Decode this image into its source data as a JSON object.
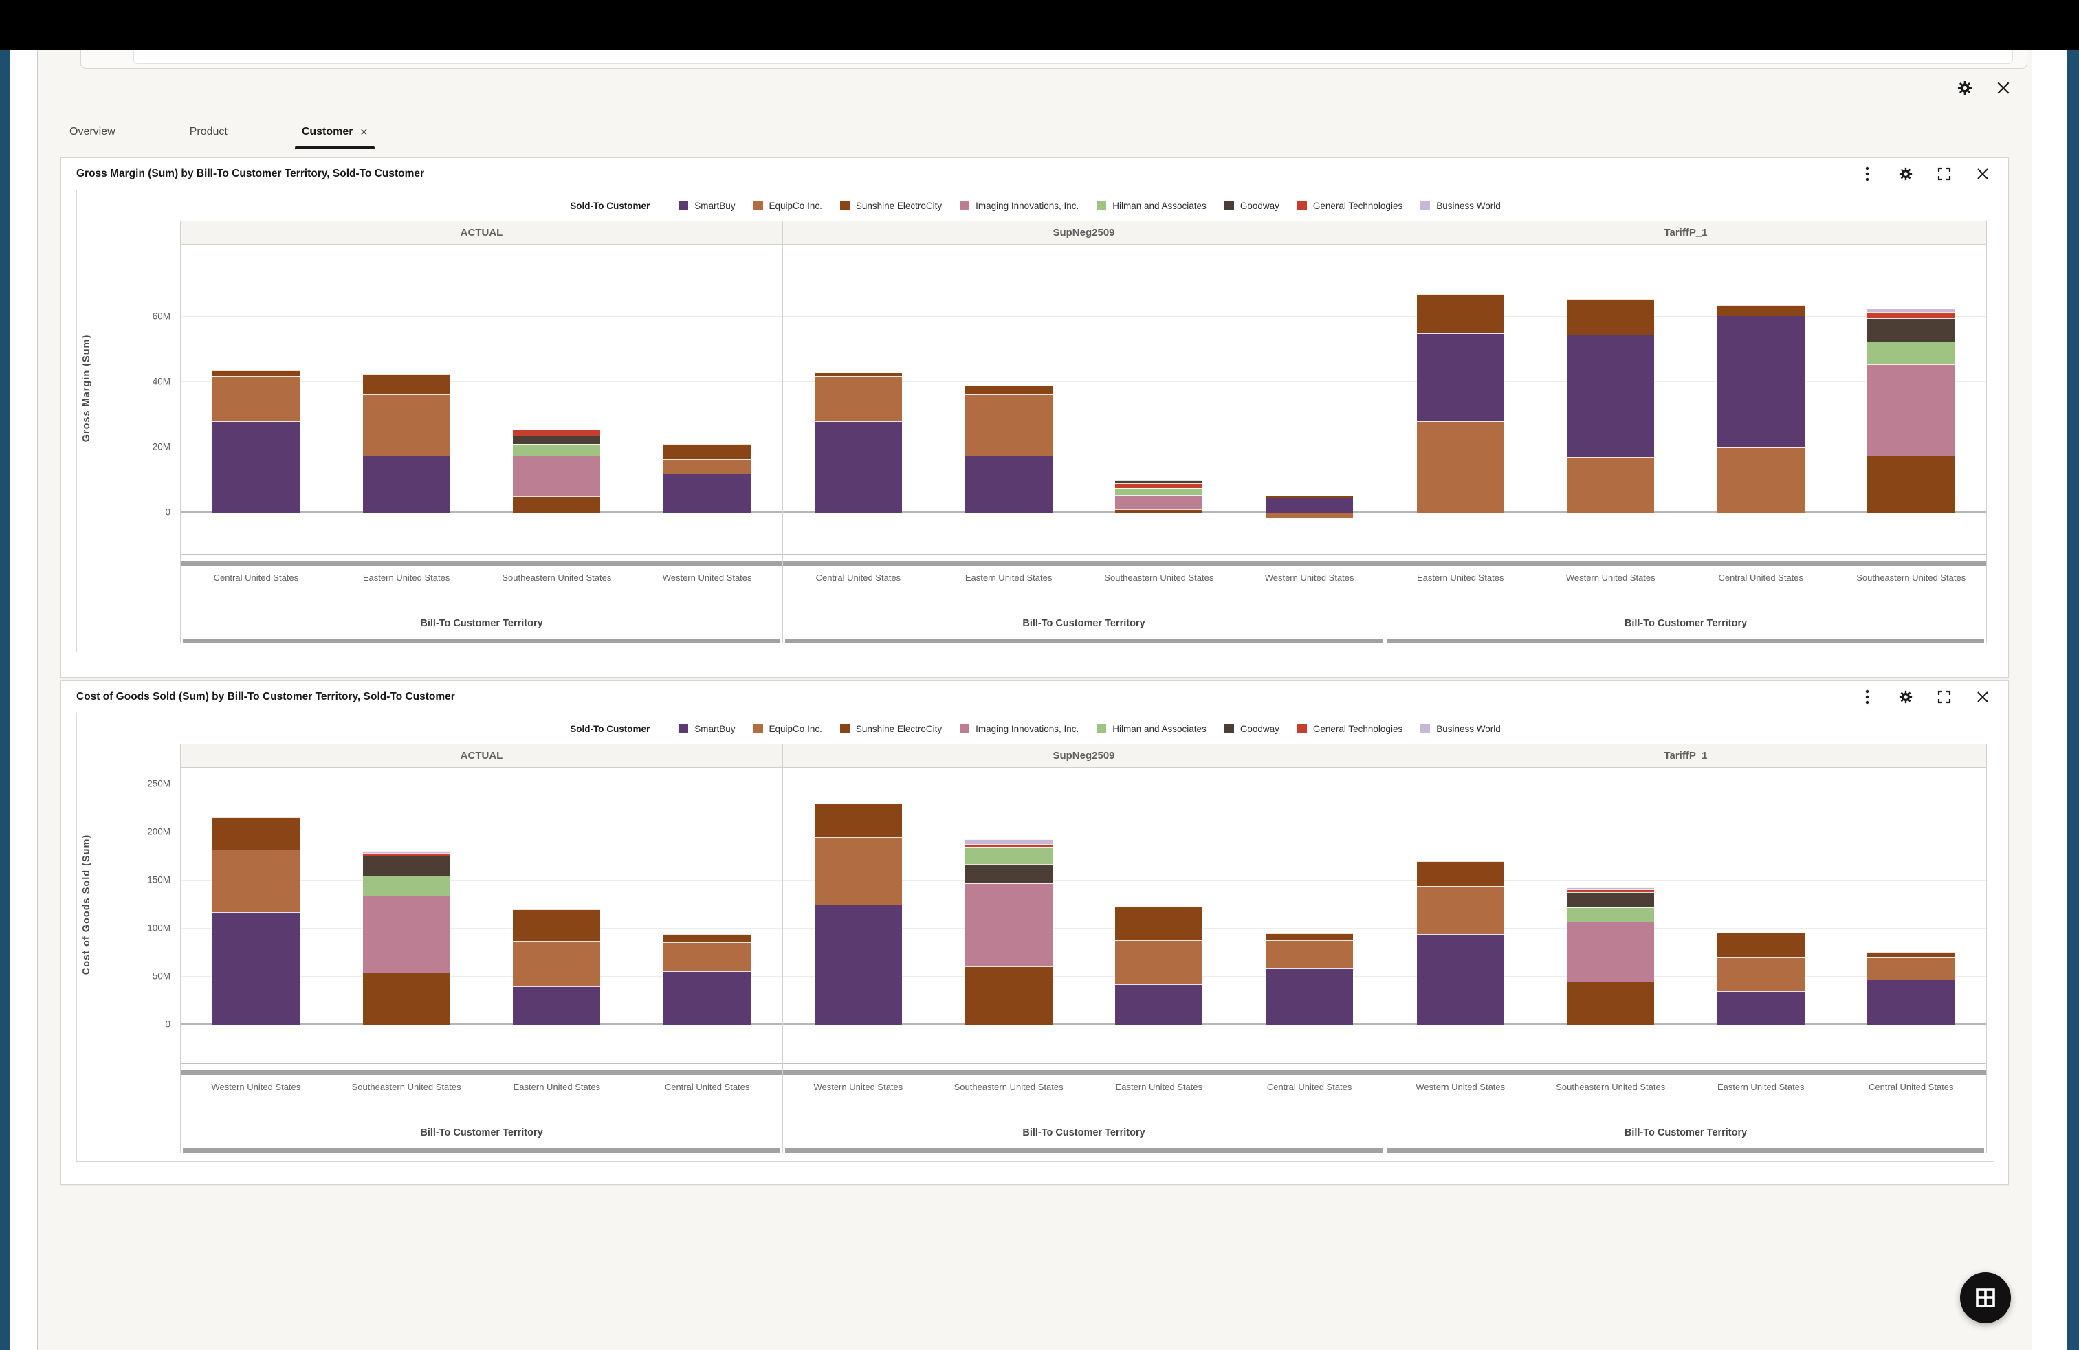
{
  "app": {
    "tabs": [
      {
        "label": "Overview",
        "active": false,
        "closable": false
      },
      {
        "label": "Product",
        "active": false,
        "closable": false
      },
      {
        "label": "Customer",
        "active": true,
        "closable": true,
        "close_glyph": "✕"
      }
    ],
    "canvas_icons": {
      "settings": "settings-icon",
      "close": "close-icon"
    },
    "panel_icon_names": [
      "kebab-menu-icon",
      "settings-icon",
      "expand-icon",
      "close-icon"
    ],
    "floating_button": "grid-view"
  },
  "legend": {
    "title": "Sold-To Customer",
    "items": [
      {
        "label": "SmartBuy",
        "color": "#5b3a70"
      },
      {
        "label": "EquipCo Inc.",
        "color": "#b16c41"
      },
      {
        "label": "Sunshine ElectroCity",
        "color": "#8a4517"
      },
      {
        "label": "Imaging Innovations, Inc.",
        "color": "#bc7e92"
      },
      {
        "label": "Hilman and Associates",
        "color": "#9ec383"
      },
      {
        "label": "Goodway",
        "color": "#4c3e34"
      },
      {
        "label": "General Technologies",
        "color": "#c63e2d"
      },
      {
        "label": "Business World",
        "color": "#c7b8d9"
      }
    ]
  },
  "chart_data": [
    {
      "type": "bar",
      "stacked": true,
      "title": "Gross Margin (Sum) by Bill-To Customer Territory, Sold-To Customer",
      "ylabel": "Gross Margin (Sum)",
      "xlabel": "Bill-To Customer Territory",
      "unit": "millions",
      "ylim": [
        -5,
        75
      ],
      "grid": true,
      "legend_position": "top",
      "yticks": [
        {
          "v": 0,
          "label": "0"
        },
        {
          "v": 20,
          "label": "20M"
        },
        {
          "v": 40,
          "label": "40M"
        },
        {
          "v": 60,
          "label": "60M"
        }
      ],
      "facets": [
        {
          "name": "ACTUAL",
          "categories": [
            "Central United States",
            "Eastern United States",
            "Southeastern United States",
            "Western United States"
          ],
          "bars": [
            [
              {
                "customer": "SmartBuy",
                "value": 28
              },
              {
                "customer": "EquipCo Inc.",
                "value": 14
              },
              {
                "customer": "Sunshine ElectroCity",
                "value": 1.5
              }
            ],
            [
              {
                "customer": "SmartBuy",
                "value": 17.5
              },
              {
                "customer": "EquipCo Inc.",
                "value": 19
              },
              {
                "customer": "Sunshine ElectroCity",
                "value": 6
              }
            ],
            [
              {
                "customer": "Sunshine ElectroCity",
                "value": 5
              },
              {
                "customer": "Imaging Innovations, Inc.",
                "value": 12.5
              },
              {
                "customer": "Hilman and Associates",
                "value": 3.5
              },
              {
                "customer": "Goodway",
                "value": 2.5
              },
              {
                "customer": "General Technologies",
                "value": 2
              }
            ],
            [
              {
                "customer": "SmartBuy",
                "value": 12
              },
              {
                "customer": "EquipCo Inc.",
                "value": 4.5
              },
              {
                "customer": "Sunshine ElectroCity",
                "value": 4.5
              }
            ]
          ]
        },
        {
          "name": "SupNeg2509",
          "categories": [
            "Central United States",
            "Eastern United States",
            "Southeastern United States",
            "Western United States"
          ],
          "bars": [
            [
              {
                "customer": "SmartBuy",
                "value": 28
              },
              {
                "customer": "EquipCo Inc.",
                "value": 14
              },
              {
                "customer": "Sunshine ElectroCity",
                "value": 1
              }
            ],
            [
              {
                "customer": "SmartBuy",
                "value": 17.5
              },
              {
                "customer": "EquipCo Inc.",
                "value": 19
              },
              {
                "customer": "Sunshine ElectroCity",
                "value": 2.5
              }
            ],
            [
              {
                "customer": "Sunshine ElectroCity",
                "value": 1
              },
              {
                "customer": "Imaging Innovations, Inc.",
                "value": 4.5
              },
              {
                "customer": "Hilman and Associates",
                "value": 2
              },
              {
                "customer": "General Technologies",
                "value": 1.5
              },
              {
                "customer": "Goodway",
                "value": 1
              }
            ],
            [
              {
                "customer": "EquipCo Inc.",
                "value": -1.5
              },
              {
                "customer": "SmartBuy",
                "value": 4.7
              },
              {
                "customer": "Sunshine ElectroCity",
                "value": 0.5
              }
            ]
          ]
        },
        {
          "name": "TariffP_1",
          "categories": [
            "Eastern United States",
            "Western United States",
            "Central United States",
            "Southeastern United States"
          ],
          "bars": [
            [
              {
                "customer": "EquipCo Inc.",
                "value": 28
              },
              {
                "customer": "SmartBuy",
                "value": 27
              },
              {
                "customer": "Sunshine ElectroCity",
                "value": 12
              }
            ],
            [
              {
                "customer": "EquipCo Inc.",
                "value": 17
              },
              {
                "customer": "SmartBuy",
                "value": 37.5
              },
              {
                "customer": "Sunshine ElectroCity",
                "value": 11
              }
            ],
            [
              {
                "customer": "EquipCo Inc.",
                "value": 20
              },
              {
                "customer": "SmartBuy",
                "value": 40.5
              },
              {
                "customer": "Sunshine ElectroCity",
                "value": 3
              }
            ],
            [
              {
                "customer": "Sunshine ElectroCity",
                "value": 17.5
              },
              {
                "customer": "Imaging Innovations, Inc.",
                "value": 28
              },
              {
                "customer": "Hilman and Associates",
                "value": 7
              },
              {
                "customer": "Goodway",
                "value": 7
              },
              {
                "customer": "General Technologies",
                "value": 2
              },
              {
                "customer": "Business World",
                "value": 1
              }
            ]
          ]
        }
      ]
    },
    {
      "type": "bar",
      "stacked": true,
      "title": "Cost of Goods Sold (Sum) by Bill-To Customer Territory, Sold-To Customer",
      "ylabel": "Cost of Goods Sold (Sum)",
      "xlabel": "Bill-To Customer Territory",
      "unit": "millions",
      "ylim": [
        -20,
        270
      ],
      "grid": true,
      "legend_position": "top",
      "yticks": [
        {
          "v": 0,
          "label": "0"
        },
        {
          "v": 50,
          "label": "50M"
        },
        {
          "v": 100,
          "label": "100M"
        },
        {
          "v": 150,
          "label": "150M"
        },
        {
          "v": 200,
          "label": "200M"
        },
        {
          "v": 250,
          "label": "250M"
        }
      ],
      "facets": [
        {
          "name": "ACTUAL",
          "categories": [
            "Western United States",
            "Southeastern United States",
            "Eastern United States",
            "Central United States"
          ],
          "bars": [
            [
              {
                "customer": "SmartBuy",
                "value": 117
              },
              {
                "customer": "EquipCo Inc.",
                "value": 65
              },
              {
                "customer": "Sunshine ElectroCity",
                "value": 34
              }
            ],
            [
              {
                "customer": "Sunshine ElectroCity",
                "value": 54
              },
              {
                "customer": "Imaging Innovations, Inc.",
                "value": 80
              },
              {
                "customer": "Hilman and Associates",
                "value": 21
              },
              {
                "customer": "Goodway",
                "value": 21
              },
              {
                "customer": "General Technologies",
                "value": 2.5
              },
              {
                "customer": "Business World",
                "value": 2.5
              }
            ],
            [
              {
                "customer": "SmartBuy",
                "value": 40
              },
              {
                "customer": "EquipCo Inc.",
                "value": 47
              },
              {
                "customer": "Sunshine ElectroCity",
                "value": 33
              }
            ],
            [
              {
                "customer": "SmartBuy",
                "value": 56
              },
              {
                "customer": "EquipCo Inc.",
                "value": 30
              },
              {
                "customer": "Sunshine ElectroCity",
                "value": 8
              }
            ]
          ]
        },
        {
          "name": "SupNeg2509",
          "categories": [
            "Western United States",
            "Southeastern United States",
            "Eastern United States",
            "Central United States"
          ],
          "bars": [
            [
              {
                "customer": "SmartBuy",
                "value": 125
              },
              {
                "customer": "EquipCo Inc.",
                "value": 70
              },
              {
                "customer": "Sunshine ElectroCity",
                "value": 35
              }
            ],
            [
              {
                "customer": "Sunshine ElectroCity",
                "value": 61
              },
              {
                "customer": "Imaging Innovations, Inc.",
                "value": 86
              },
              {
                "customer": "Goodway",
                "value": 20
              },
              {
                "customer": "Hilman and Associates",
                "value": 18
              },
              {
                "customer": "General Technologies",
                "value": 3
              },
              {
                "customer": "Business World",
                "value": 5
              }
            ],
            [
              {
                "customer": "SmartBuy",
                "value": 42
              },
              {
                "customer": "EquipCo Inc.",
                "value": 46
              },
              {
                "customer": "Sunshine ElectroCity",
                "value": 35
              }
            ],
            [
              {
                "customer": "SmartBuy",
                "value": 59
              },
              {
                "customer": "EquipCo Inc.",
                "value": 29
              },
              {
                "customer": "Sunshine ElectroCity",
                "value": 7
              }
            ]
          ]
        },
        {
          "name": "TariffP_1",
          "categories": [
            "Western United States",
            "Southeastern United States",
            "Eastern United States",
            "Central United States"
          ],
          "bars": [
            [
              {
                "customer": "SmartBuy",
                "value": 94
              },
              {
                "customer": "EquipCo Inc.",
                "value": 50
              },
              {
                "customer": "Sunshine ElectroCity",
                "value": 26
              }
            ],
            [
              {
                "customer": "Sunshine ElectroCity",
                "value": 45
              },
              {
                "customer": "Imaging Innovations, Inc.",
                "value": 62
              },
              {
                "customer": "Hilman and Associates",
                "value": 15
              },
              {
                "customer": "Goodway",
                "value": 16
              },
              {
                "customer": "General Technologies",
                "value": 3
              },
              {
                "customer": "Business World",
                "value": 2
              }
            ],
            [
              {
                "customer": "SmartBuy",
                "value": 35
              },
              {
                "customer": "EquipCo Inc.",
                "value": 36
              },
              {
                "customer": "Sunshine ElectroCity",
                "value": 25
              }
            ],
            [
              {
                "customer": "SmartBuy",
                "value": 47
              },
              {
                "customer": "EquipCo Inc.",
                "value": 24
              },
              {
                "customer": "Sunshine ElectroCity",
                "value": 5
              }
            ]
          ]
        }
      ]
    }
  ]
}
